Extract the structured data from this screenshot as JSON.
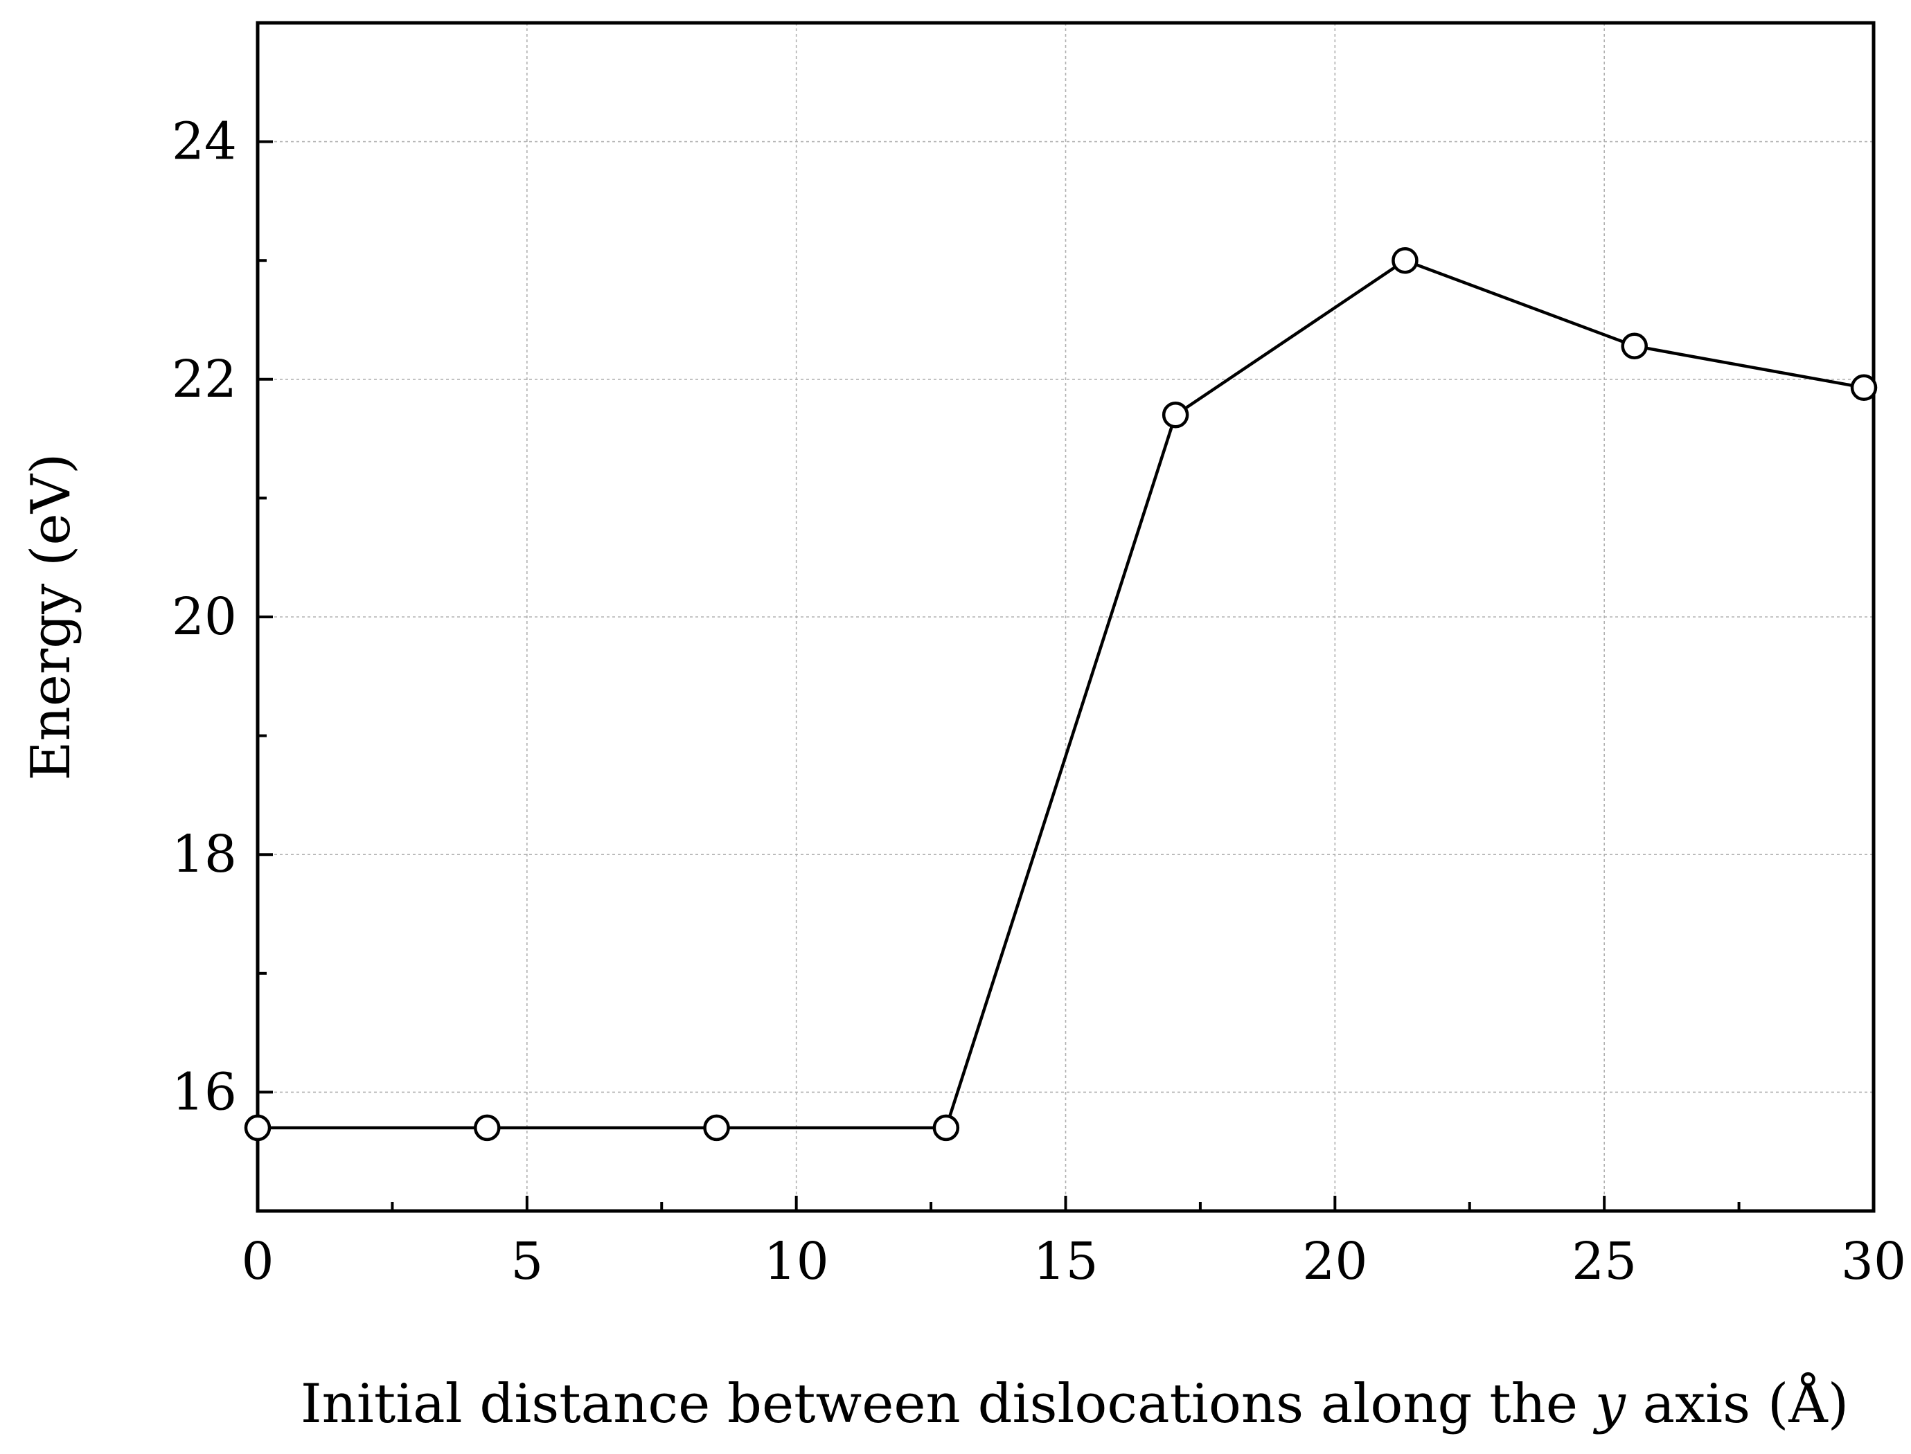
{
  "chart_data": {
    "type": "line",
    "title": "",
    "xlabel": "Initial distance between dislocations along the y axis (Å)",
    "xlabel_parts": {
      "before": "Initial distance between dislocations along the ",
      "italic": "y",
      "after": " axis (Å)"
    },
    "ylabel": "Energy (eV)",
    "xlim": [
      0,
      30
    ],
    "ylim": [
      15,
      25
    ],
    "x_ticks": [
      0,
      5,
      10,
      15,
      20,
      25,
      30
    ],
    "x_tick_labels": [
      "0",
      "5",
      "10",
      "15",
      "20",
      "25",
      "30"
    ],
    "x_minor_ticks": [
      2.5,
      7.5,
      12.5,
      17.5,
      22.5,
      27.5
    ],
    "y_ticks": [
      16,
      18,
      20,
      22,
      24
    ],
    "y_tick_labels": [
      "16",
      "18",
      "20",
      "22",
      "24"
    ],
    "y_minor_ticks": [
      15,
      17,
      19,
      21,
      23,
      25
    ],
    "grid": true,
    "legend": "none",
    "marker": "open-circle",
    "line_color": "#000000",
    "grid_color": "#b0b0b0",
    "series": [
      {
        "x": [
          0,
          4.26,
          8.52,
          12.78,
          17.04,
          21.3,
          25.56,
          29.82
        ],
        "y": [
          15.7,
          15.7,
          15.7,
          15.7,
          21.7,
          23.0,
          22.28,
          21.93
        ]
      }
    ]
  }
}
